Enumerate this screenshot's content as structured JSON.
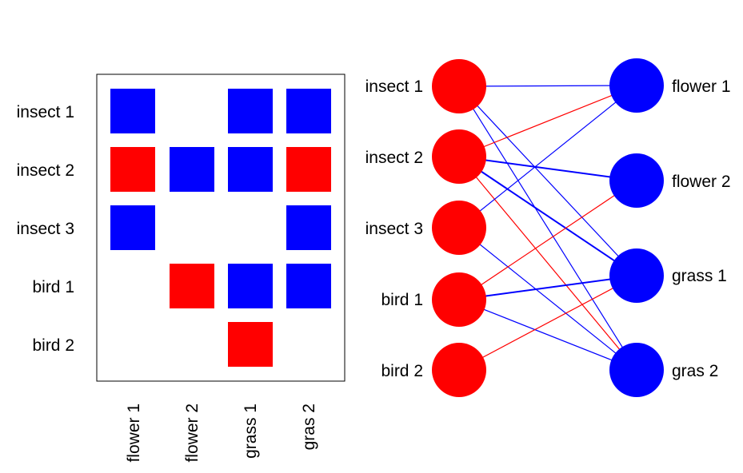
{
  "colors": {
    "red": "#ff0000",
    "blue": "#0000ff",
    "frame": "#000000"
  },
  "matrix": {
    "rows": [
      "insect 1",
      "insect 2",
      "insect 3",
      "bird 1",
      "bird 2"
    ],
    "cols": [
      "flower 1",
      "flower 2",
      "grass 1",
      "gras 2"
    ],
    "cells": [
      [
        "blue",
        "",
        "blue",
        "blue"
      ],
      [
        "red",
        "blue",
        "blue",
        "red"
      ],
      [
        "blue",
        "",
        "",
        "blue"
      ],
      [
        "",
        "red",
        "blue",
        "blue"
      ],
      [
        "",
        "",
        "red",
        ""
      ]
    ]
  },
  "network": {
    "left_nodes": [
      "insect 1",
      "insect 2",
      "insect 3",
      "bird 1",
      "bird 2"
    ],
    "right_nodes": [
      "flower 1",
      "flower 2",
      "grass 1",
      "gras 2"
    ],
    "edges": [
      {
        "from": 0,
        "to": 0,
        "color": "blue",
        "weight": 1
      },
      {
        "from": 0,
        "to": 2,
        "color": "blue",
        "weight": 1
      },
      {
        "from": 0,
        "to": 3,
        "color": "blue",
        "weight": 1
      },
      {
        "from": 1,
        "to": 0,
        "color": "red",
        "weight": 1
      },
      {
        "from": 1,
        "to": 1,
        "color": "blue",
        "weight": 2
      },
      {
        "from": 1,
        "to": 2,
        "color": "blue",
        "weight": 2
      },
      {
        "from": 1,
        "to": 3,
        "color": "red",
        "weight": 1
      },
      {
        "from": 2,
        "to": 0,
        "color": "blue",
        "weight": 1
      },
      {
        "from": 2,
        "to": 3,
        "color": "blue",
        "weight": 1
      },
      {
        "from": 3,
        "to": 1,
        "color": "red",
        "weight": 1
      },
      {
        "from": 3,
        "to": 2,
        "color": "blue",
        "weight": 2
      },
      {
        "from": 3,
        "to": 3,
        "color": "blue",
        "weight": 1
      },
      {
        "from": 4,
        "to": 2,
        "color": "red",
        "weight": 1
      }
    ]
  }
}
